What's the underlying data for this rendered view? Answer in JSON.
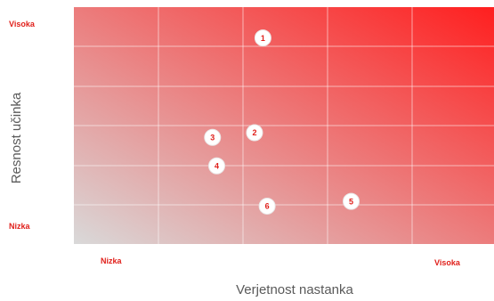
{
  "chart_data": {
    "type": "scatter",
    "xlabel": "Verjetnost nastanka",
    "ylabel": "Resnost učinka",
    "x_tick_labels": {
      "low": "Nizka",
      "high": "Visoka"
    },
    "y_tick_labels": {
      "low": "Nizka",
      "high": "Visoka"
    },
    "xlim": [
      0,
      10
    ],
    "ylim": [
      0,
      10
    ],
    "grid": true,
    "gradient": {
      "low_color": "#d9d9d9",
      "high_color": "#ff1f1f"
    },
    "points": [
      {
        "label": "1",
        "x": 4.5,
        "y": 8.7
      },
      {
        "label": "2",
        "x": 4.3,
        "y": 4.7
      },
      {
        "label": "3",
        "x": 3.3,
        "y": 4.5
      },
      {
        "label": "4",
        "x": 3.4,
        "y": 3.3
      },
      {
        "label": "5",
        "x": 6.6,
        "y": 1.8
      },
      {
        "label": "6",
        "x": 4.6,
        "y": 1.6
      }
    ]
  }
}
